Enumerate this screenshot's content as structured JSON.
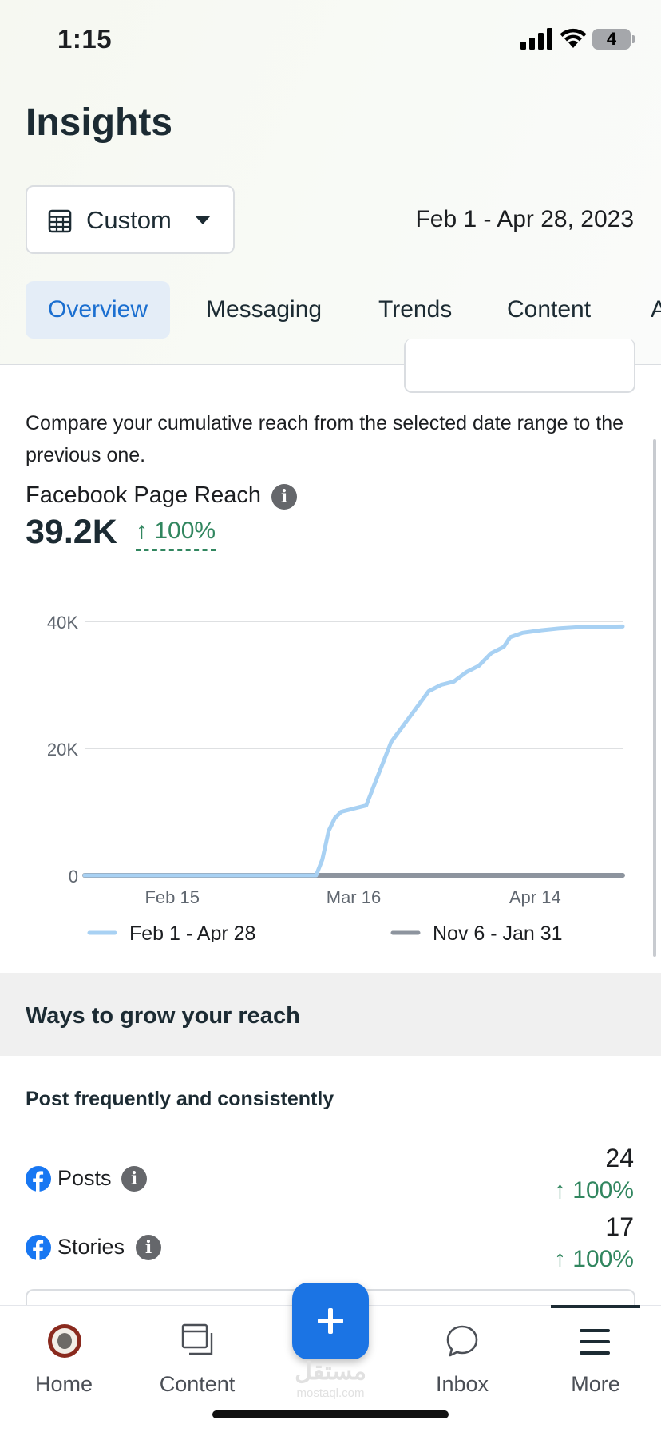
{
  "status_bar": {
    "time": "1:15",
    "battery": "4"
  },
  "header": {
    "title": "Insights",
    "range_button_label": "Custom",
    "date_range": "Feb 1 - Apr 28, 2023",
    "tabs": [
      {
        "label": "Overview",
        "active": true
      },
      {
        "label": "Messaging",
        "active": false
      },
      {
        "label": "Trends",
        "active": false
      },
      {
        "label": "Content",
        "active": false
      },
      {
        "label": "A",
        "active": false
      }
    ]
  },
  "reach_section": {
    "description": "Compare your cumulative reach from the selected date range to the previous one.",
    "metric_label": "Facebook Page Reach",
    "metric_value": "39.2K",
    "metric_change": "↑ 100%"
  },
  "chart_data": {
    "type": "line",
    "y_ticks": [
      "40K",
      "20K",
      "0"
    ],
    "x_ticks": [
      "Feb 15",
      "Mar 16",
      "Apr 14"
    ],
    "ylim": [
      0,
      40000
    ],
    "x_range": [
      "2023-02-01",
      "2023-04-28"
    ],
    "grid": true,
    "legend_position": "bottom",
    "series": [
      {
        "name": "Feb 1 - Apr 28",
        "color": "#a8d1f3",
        "points": [
          [
            "2023-02-01",
            0
          ],
          [
            "2023-03-10",
            0
          ],
          [
            "2023-03-11",
            2500
          ],
          [
            "2023-03-12",
            7000
          ],
          [
            "2023-03-13",
            9000
          ],
          [
            "2023-03-14",
            10000
          ],
          [
            "2023-03-16",
            10500
          ],
          [
            "2023-03-18",
            11000
          ],
          [
            "2023-03-20",
            16000
          ],
          [
            "2023-03-22",
            21000
          ],
          [
            "2023-03-25",
            25000
          ],
          [
            "2023-03-28",
            29000
          ],
          [
            "2023-03-30",
            30000
          ],
          [
            "2023-04-01",
            30500
          ],
          [
            "2023-04-03",
            32000
          ],
          [
            "2023-04-05",
            33000
          ],
          [
            "2023-04-07",
            35000
          ],
          [
            "2023-04-09",
            36000
          ],
          [
            "2023-04-10",
            37500
          ],
          [
            "2023-04-12",
            38200
          ],
          [
            "2023-04-15",
            38600
          ],
          [
            "2023-04-18",
            38900
          ],
          [
            "2023-04-21",
            39100
          ],
          [
            "2023-04-28",
            39200
          ]
        ]
      },
      {
        "name": "Nov 6 - Jan 31",
        "color": "#8d949e",
        "points": [
          [
            "2023-02-01",
            0
          ],
          [
            "2023-04-28",
            0
          ]
        ]
      }
    ]
  },
  "ways_section": {
    "title": "Ways to grow your reach",
    "subtitle": "Post frequently and consistently",
    "rows": [
      {
        "label": "Posts",
        "value": "24",
        "change": "↑ 100%"
      },
      {
        "label": "Stories",
        "value": "17",
        "change": "↑ 100%"
      }
    ]
  },
  "bottom_nav": {
    "items": [
      {
        "label": "Home"
      },
      {
        "label": "Content"
      },
      {
        "label": "Inbox"
      },
      {
        "label": "More"
      }
    ],
    "fab_icon": "plus-icon"
  },
  "watermark": {
    "text": "مستقل",
    "sub": "mostaql.com"
  }
}
